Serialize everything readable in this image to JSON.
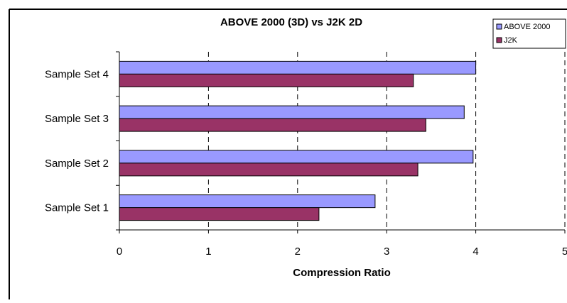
{
  "chart_data": {
    "type": "bar",
    "orientation": "horizontal",
    "title": "ABOVE 2000 (3D) vs J2K 2D",
    "xlabel": "Compression Ratio",
    "ylabel": "",
    "categories": [
      "Sample Set 1",
      "Sample Set 2",
      "Sample Set 3",
      "Sample Set 4"
    ],
    "series": [
      {
        "name": "ABOVE 2000",
        "color": "#9999ff",
        "values": [
          2.87,
          3.97,
          3.87,
          4.0
        ]
      },
      {
        "name": "J2K",
        "color": "#993366",
        "values": [
          2.24,
          3.35,
          3.44,
          3.3
        ]
      }
    ],
    "xlim": [
      0,
      5
    ],
    "xticks": [
      "0",
      "1",
      "2",
      "3",
      "4",
      "5"
    ],
    "grid": "vertical dashed",
    "legend": "top-right"
  }
}
